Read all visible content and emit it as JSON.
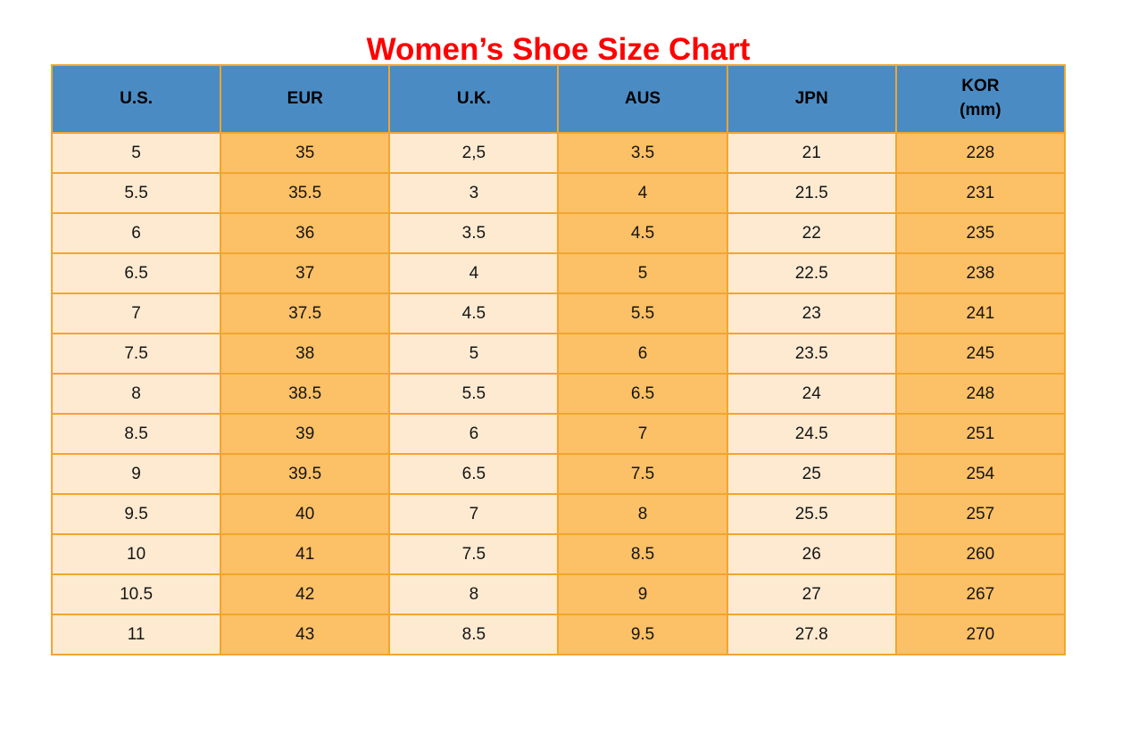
{
  "page": {
    "title": "Women’s Shoe Size Chart"
  },
  "colors": {
    "title": "#ff0000",
    "header_background": "#4a8bc4",
    "column_light": "#fdead1",
    "column_orange": "#fcc066",
    "grid_border": "#f1a52f",
    "header_text": "#000000",
    "cell_text": "#151515"
  },
  "table": {
    "headers": [
      "U.S.",
      "EUR",
      "U.K.",
      "AUS",
      "JPN",
      "KOR\n(mm)"
    ],
    "column_style": [
      "light",
      "orange",
      "light",
      "orange",
      "light",
      "orange"
    ],
    "rows": [
      [
        "5",
        "35",
        "2,5",
        "3.5",
        "21",
        "228"
      ],
      [
        "5.5",
        "35.5",
        "3",
        "4",
        "21.5",
        "231"
      ],
      [
        "6",
        "36",
        "3.5",
        "4.5",
        "22",
        "235"
      ],
      [
        "6.5",
        "37",
        "4",
        "5",
        "22.5",
        "238"
      ],
      [
        "7",
        "37.5",
        "4.5",
        "5.5",
        "23",
        "241"
      ],
      [
        "7.5",
        "38",
        "5",
        "6",
        "23.5",
        "245"
      ],
      [
        "8",
        "38.5",
        "5.5",
        "6.5",
        "24",
        "248"
      ],
      [
        "8.5",
        "39",
        "6",
        "7",
        "24.5",
        "251"
      ],
      [
        "9",
        "39.5",
        "6.5",
        "7.5",
        "25",
        "254"
      ],
      [
        "9.5",
        "40",
        "7",
        "8",
        "25.5",
        "257"
      ],
      [
        "10",
        "41",
        "7.5",
        "8.5",
        "26",
        "260"
      ],
      [
        "10.5",
        "42",
        "8",
        "9",
        "27",
        "267"
      ],
      [
        "11",
        "43",
        "8.5",
        "9.5",
        "27.8",
        "270"
      ]
    ]
  }
}
